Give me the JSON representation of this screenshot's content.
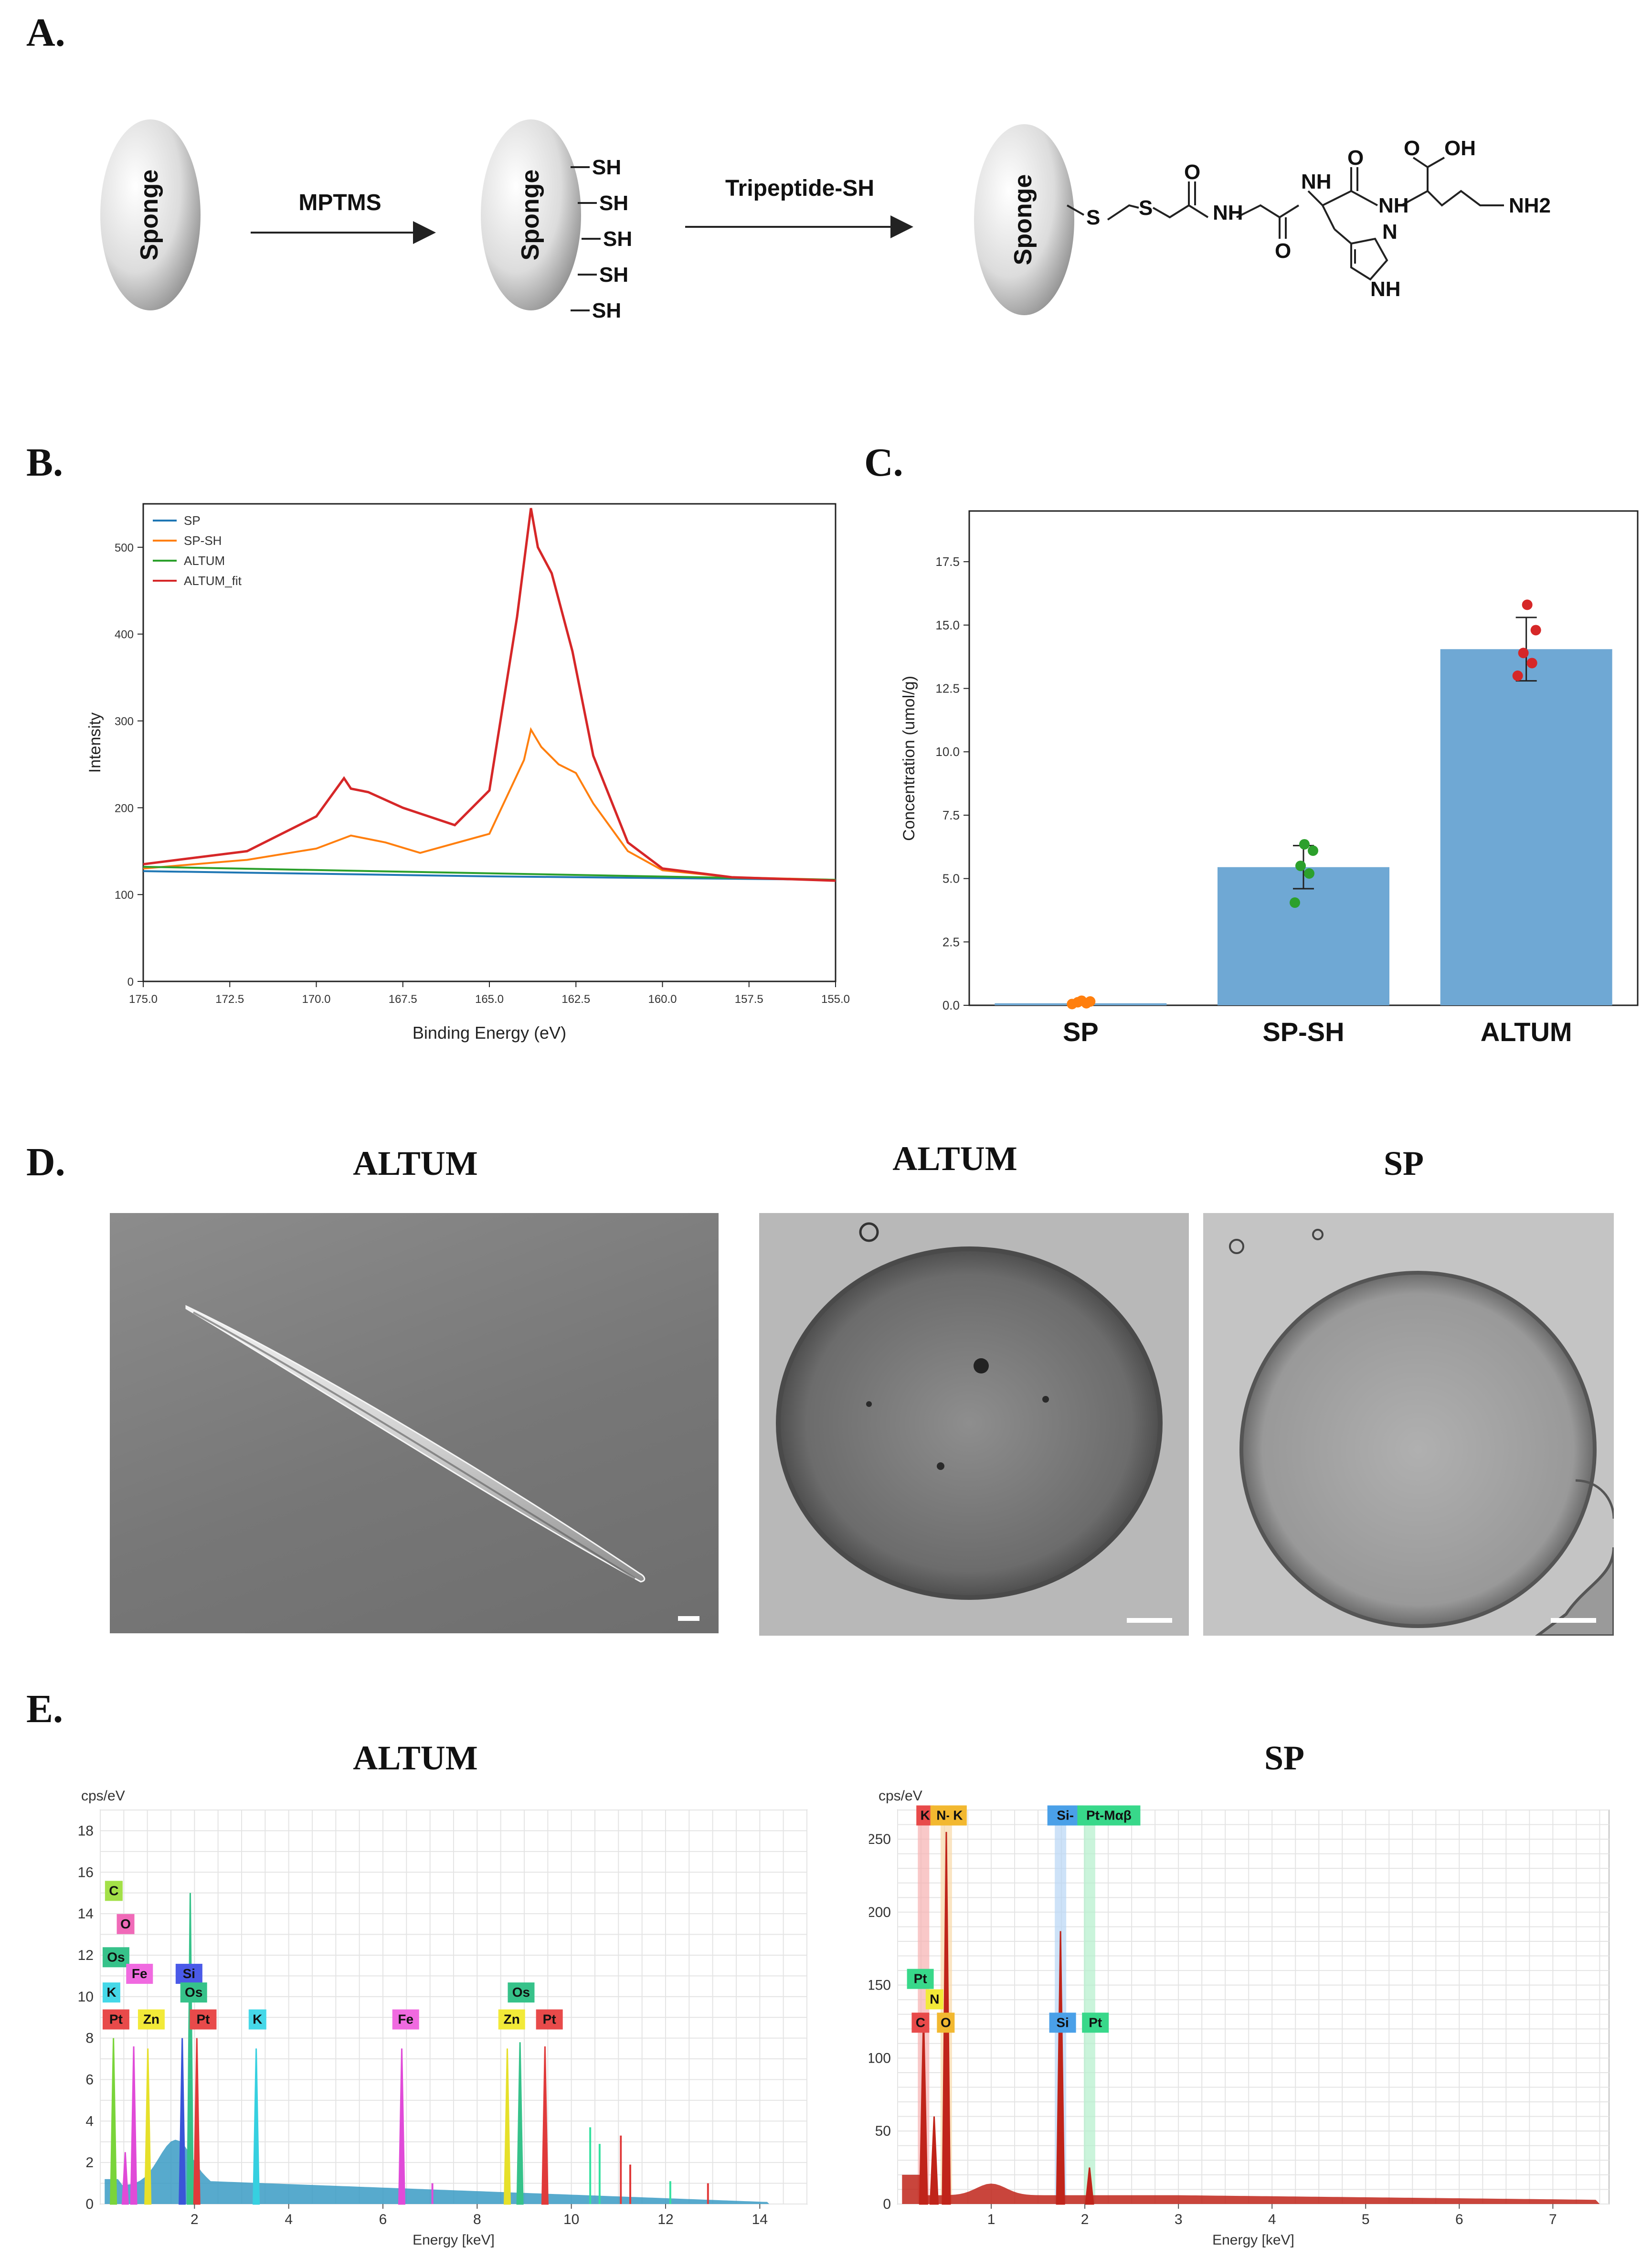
{
  "panels": {
    "a": "A.",
    "b": "B.",
    "c": "C.",
    "d": "D.",
    "e": "E."
  },
  "scheme": {
    "sponge_label": "Sponge",
    "reagent1": "MPTMS",
    "reagent2": "Tripeptide-SH",
    "sh": "SH",
    "chem": {
      "s": "S",
      "o": "O",
      "oh": "OH",
      "nh": "NH",
      "nh2": "NH2",
      "n": "N",
      "h": "H"
    }
  },
  "colors": {
    "sp": "#1f77b4",
    "sp_sh": "#ff7f0e",
    "altum": "#2ca02c",
    "altum_fit": "#d62728",
    "bar": "#6fa8d4",
    "altum_edx": "#3a9bc4",
    "sp_edx": "#c0241a"
  },
  "chart_data": [
    {
      "id": "xps",
      "type": "line",
      "xlabel": "Binding Energy (eV)",
      "ylabel": "Intensity",
      "xlim": [
        175.0,
        155.0
      ],
      "ylim": [
        0,
        550
      ],
      "xticks": [
        "175.0",
        "172.5",
        "170.0",
        "167.5",
        "165.0",
        "162.5",
        "160.0",
        "157.5",
        "155.0"
      ],
      "yticks": [
        "0",
        "100",
        "200",
        "300",
        "400",
        "500"
      ],
      "legend_position": "top-left",
      "series": [
        {
          "name": "SP",
          "x": [
            175,
            170,
            165,
            160,
            155
          ],
          "y": [
            127,
            124,
            121,
            119,
            117
          ]
        },
        {
          "name": "SP-SH",
          "x": [
            175,
            172,
            170,
            169,
            168,
            167,
            165,
            164,
            163.8,
            163.5,
            163,
            162.5,
            162,
            161,
            160,
            158,
            155
          ],
          "y": [
            130,
            140,
            153,
            168,
            160,
            148,
            170,
            255,
            290,
            270,
            250,
            240,
            205,
            150,
            128,
            120,
            117
          ]
        },
        {
          "name": "ALTUM",
          "x": [
            175,
            155
          ],
          "y": [
            132,
            117
          ]
        },
        {
          "name": "ALTUM_fit",
          "x": [
            175,
            172,
            170,
            169.2,
            169,
            168.5,
            167.5,
            166,
            165,
            164.2,
            163.8,
            163.6,
            163.2,
            162.6,
            162,
            161,
            160,
            158,
            155
          ],
          "y": [
            135,
            150,
            190,
            234,
            222,
            218,
            200,
            180,
            220,
            420,
            545,
            500,
            470,
            380,
            260,
            160,
            130,
            120,
            116
          ]
        }
      ]
    },
    {
      "id": "conc",
      "type": "bar",
      "ylabel": "Concentration (umol/g)",
      "categories": [
        "SP",
        "SP-SH",
        "ALTUM"
      ],
      "values": [
        0.08,
        5.45,
        14.05
      ],
      "errors": [
        0.06,
        0.85,
        1.25
      ],
      "ylim": [
        0,
        19.5
      ],
      "yticks": [
        "0.0",
        "2.5",
        "5.0",
        "7.5",
        "10.0",
        "12.5",
        "15.0",
        "17.5"
      ],
      "points": [
        [
          0.05,
          0.08,
          0.12,
          0.15,
          0.18
        ],
        [
          4.05,
          5.2,
          5.5,
          6.1,
          6.35
        ],
        [
          13.0,
          13.5,
          13.9,
          14.8,
          15.8
        ]
      ],
      "point_colors": [
        "#ff7f0e",
        "#2ca02c",
        "#d62728"
      ]
    },
    {
      "id": "edx_altum",
      "type": "area",
      "title": "cps/eV",
      "xlabel": "Energy [keV]",
      "xlim": [
        0,
        15
      ],
      "ylim": [
        0,
        19
      ],
      "xticks": [
        "2",
        "4",
        "6",
        "8",
        "10",
        "12",
        "14"
      ],
      "yticks": [
        "0",
        "2",
        "4",
        "6",
        "8",
        "10",
        "12",
        "14",
        "16",
        "18"
      ],
      "peaks": [
        {
          "label": "C",
          "x": 0.28,
          "y": 8.0,
          "color": "#7ad43a"
        },
        {
          "label": "O",
          "x": 0.53,
          "y": 2.5,
          "color": "#e04bd8"
        },
        {
          "label": "Fe",
          "x": 0.71,
          "y": 7.6,
          "color": "#e04bd8"
        },
        {
          "label": "Zn",
          "x": 1.01,
          "y": 7.5,
          "color": "#e6e02a"
        },
        {
          "label": "Si",
          "x": 1.74,
          "y": 8.0,
          "color": "#3a55d8"
        },
        {
          "label": "Os",
          "x": 1.91,
          "y": 15.0,
          "color": "#36c28a"
        },
        {
          "label": "Pt",
          "x": 2.05,
          "y": 8.0,
          "color": "#e03a3a"
        },
        {
          "label": "K",
          "x": 3.31,
          "y": 7.5,
          "color": "#36d0e0"
        },
        {
          "label": "Fe",
          "x": 6.4,
          "y": 7.5,
          "color": "#e04bd8"
        },
        {
          "label": "Zn",
          "x": 8.64,
          "y": 7.5,
          "color": "#e6e02a"
        },
        {
          "label": "Os",
          "x": 8.91,
          "y": 7.8,
          "color": "#36c28a"
        },
        {
          "label": "Pt",
          "x": 9.44,
          "y": 7.6,
          "color": "#e03a3a"
        }
      ],
      "tags": [
        {
          "label": "C",
          "x": 0.1,
          "y": 14.8,
          "color": "#a3e048"
        },
        {
          "label": "O",
          "x": 0.35,
          "y": 13.2,
          "color": "#f06ab8"
        },
        {
          "label": "Os",
          "x": 0.05,
          "y": 11.6,
          "color": "#36c28a"
        },
        {
          "label": "Fe",
          "x": 0.55,
          "y": 10.8,
          "color": "#f06ae0"
        },
        {
          "label": "Si",
          "x": 1.6,
          "y": 10.8,
          "color": "#4a5ae8"
        },
        {
          "label": "K",
          "x": 0.05,
          "y": 9.9,
          "color": "#45d8e8"
        },
        {
          "label": "Os",
          "x": 1.7,
          "y": 9.9,
          "color": "#36c28a"
        },
        {
          "label": "Pt",
          "x": 0.05,
          "y": 8.6,
          "color": "#e84a4a"
        },
        {
          "label": "Zn",
          "x": 0.8,
          "y": 8.6,
          "color": "#f2ea38"
        },
        {
          "label": "Pt",
          "x": 1.9,
          "y": 8.6,
          "color": "#e84a4a"
        },
        {
          "label": "K",
          "x": 3.15,
          "y": 8.6,
          "color": "#45d8e8"
        },
        {
          "label": "Fe",
          "x": 6.2,
          "y": 8.6,
          "color": "#f06ae0"
        },
        {
          "label": "Os",
          "x": 8.65,
          "y": 9.9,
          "color": "#36c28a"
        },
        {
          "label": "Zn",
          "x": 8.45,
          "y": 8.6,
          "color": "#f2ea38"
        },
        {
          "label": "Pt",
          "x": 9.25,
          "y": 8.6,
          "color": "#e84a4a"
        }
      ],
      "minor_peaks": [
        {
          "x": 10.4,
          "y": 3.7,
          "color": "#36e0a0"
        },
        {
          "x": 10.6,
          "y": 2.9,
          "color": "#36e0a0"
        },
        {
          "x": 11.05,
          "y": 3.3,
          "color": "#e03a3a"
        },
        {
          "x": 11.25,
          "y": 1.9,
          "color": "#e03a3a"
        },
        {
          "x": 12.1,
          "y": 1.1,
          "color": "#36e0a0"
        },
        {
          "x": 12.9,
          "y": 1.0,
          "color": "#e03a3a"
        },
        {
          "x": 7.05,
          "y": 1.0,
          "color": "#e04bd8"
        }
      ]
    },
    {
      "id": "edx_sp",
      "type": "area",
      "title": "cps/eV",
      "xlabel": "Energy [keV]",
      "xlim": [
        0,
        7.6
      ],
      "ylim": [
        0,
        270
      ],
      "xticks": [
        "1",
        "2",
        "3",
        "4",
        "5",
        "6",
        "7"
      ],
      "yticks": [
        "0",
        "50",
        "100",
        "150",
        "200",
        "250"
      ],
      "peaks": [
        {
          "label": "C",
          "x": 0.277,
          "y": 130,
          "color": "#c0241a"
        },
        {
          "label": "N",
          "x": 0.39,
          "y": 60,
          "color": "#c0241a"
        },
        {
          "label": "O",
          "x": 0.52,
          "y": 255,
          "color": "#c0241a"
        },
        {
          "label": "Si",
          "x": 1.74,
          "y": 187,
          "color": "#c0241a"
        },
        {
          "label": "Pt",
          "x": 2.05,
          "y": 25,
          "color": "#c0241a"
        }
      ],
      "tags": [
        {
          "label": "K",
          "x": 0.2,
          "y": 262,
          "color": "#e84a4a"
        },
        {
          "label": "N-K",
          "x": 0.35,
          "y": 262,
          "color": "#f2b830"
        },
        {
          "label": "K",
          "x": 0.55,
          "y": 262,
          "color": "#f2b830"
        },
        {
          "label": "Si-",
          "x": 1.6,
          "y": 262,
          "color": "#4aa0e8"
        },
        {
          "label": "Pt-Mαβ",
          "x": 1.92,
          "y": 262,
          "color": "#38d88a"
        },
        {
          "label": "Pt",
          "x": 0.1,
          "y": 150,
          "color": "#38d88a"
        },
        {
          "label": "N",
          "x": 0.3,
          "y": 136,
          "color": "#f2ea38"
        },
        {
          "label": "C",
          "x": 0.15,
          "y": 120,
          "color": "#e84a4a"
        },
        {
          "label": "O",
          "x": 0.42,
          "y": 120,
          "color": "#f2b830"
        },
        {
          "label": "Si",
          "x": 1.62,
          "y": 120,
          "color": "#4aa0e8"
        },
        {
          "label": "Pt",
          "x": 1.97,
          "y": 120,
          "color": "#38d88a"
        }
      ],
      "bands": [
        {
          "x": 0.277,
          "color": "#f7b0b0"
        },
        {
          "x": 0.52,
          "color": "#f8d8a8"
        },
        {
          "x": 1.74,
          "color": "#b8d6f5"
        },
        {
          "x": 2.05,
          "color": "#b4f0cc"
        }
      ]
    }
  ],
  "micrographs": {
    "sem_title": "ALTUM",
    "tem_altum_title": "ALTUM",
    "tem_sp_title": "SP"
  },
  "edx_titles": {
    "altum": "ALTUM",
    "sp": "SP"
  }
}
